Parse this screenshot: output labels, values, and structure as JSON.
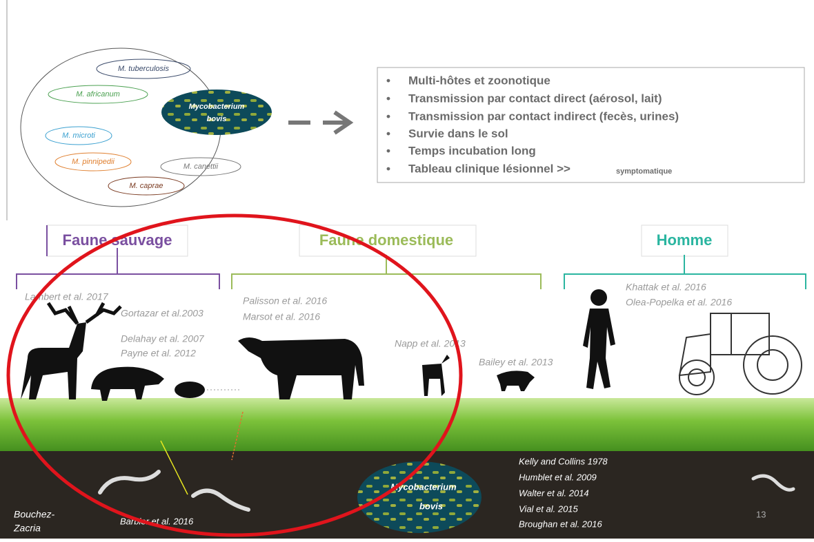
{
  "species": [
    "M. tuberculosis",
    "M. africanum",
    "M. microti",
    "M. pinnipedii",
    "M. canettii",
    "M. caprae"
  ],
  "center_species": {
    "line1": "Mycobacterium",
    "line2": "bovis"
  },
  "properties": {
    "items": [
      "Multi-hôtes et zoonotique",
      "Transmission par contact direct (aérosol, lait)",
      "Transmission par contact indirect (fecès, urines)",
      "Survie dans le sol",
      "Temps incubation long",
      "Tableau clinique lésionnel >>"
    ],
    "last_item_note": "symptomatique"
  },
  "groups": [
    "Faune sauvage",
    "Faune domestique",
    "Homme"
  ],
  "references": {
    "wildlife": [
      "Lambert et al. 2017",
      "Gortazar et al.2003",
      "Delahay et al. 2007",
      "Payne et al. 2012"
    ],
    "domestic": [
      "Palisson et al. 2016",
      "Marsot et al. 2016",
      "Napp et al. 2013",
      "Bailey et al. 2013"
    ],
    "human": [
      "Khattak et al. 2016",
      "Olea-Popelka et al. 2016"
    ],
    "soil": [
      "Kelly and Collins 1978",
      "Humblet et al. 2009",
      "Walter et al. 2014",
      "Vial et al. 2015",
      "Broughan et al. 2016"
    ],
    "soil_worm": "Barbier et al. 2016"
  },
  "soil_pathogen": {
    "line1": "Mycobacterium",
    "line2": "bovis"
  },
  "footer": {
    "author_line1": "Bouchez-",
    "author_line2": "Zacria",
    "page_number": "13"
  }
}
